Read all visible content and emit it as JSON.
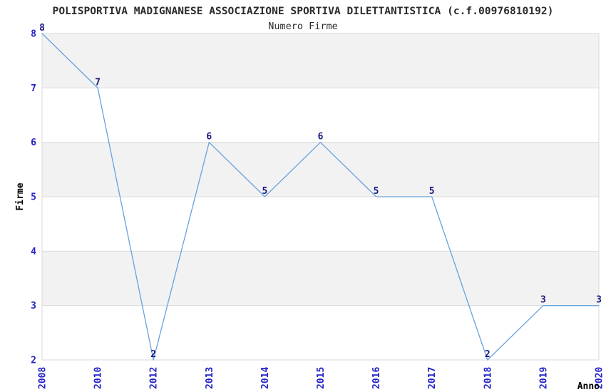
{
  "chart_data": {
    "type": "line",
    "title": "POLISPORTIVA MADIGNANESE ASSOCIAZIONE SPORTIVA DILETTANTISTICA (c.f.00976810192)",
    "subtitle": "Numero Firme",
    "xlabel": "Anno",
    "ylabel": "Firme",
    "categories": [
      "2008",
      "2010",
      "2012",
      "2013",
      "2014",
      "2015",
      "2016",
      "2017",
      "2018",
      "2019",
      "2020"
    ],
    "values": [
      8,
      7,
      2,
      6,
      5,
      6,
      5,
      5,
      2,
      3,
      3
    ],
    "ylim": [
      2,
      8
    ],
    "yticks": [
      2,
      3,
      4,
      5,
      6,
      7,
      8
    ],
    "grid": "horizontal",
    "bands": "alternating-gray-between-integer-gridlines",
    "legend": "none",
    "point_labels": "shown-above-each-point",
    "colors": {
      "line": "#68a1de",
      "band": "#f2f2f2",
      "grid": "#d9d9d9",
      "tick_label": "#2323c8",
      "point_label": "#1a1a80",
      "title": "#2b2b2b",
      "axis_label": "#000000",
      "background": "#ffffff"
    }
  }
}
